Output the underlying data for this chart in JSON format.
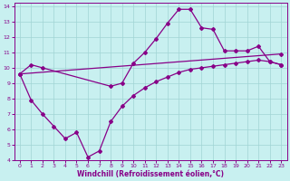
{
  "xlabel": "Windchill (Refroidissement éolien,°C)",
  "background_color": "#c8f0f0",
  "line_color": "#880088",
  "grid_color": "#a0d4d4",
  "xlim": [
    -0.5,
    23.5
  ],
  "ylim": [
    4,
    14.2
  ],
  "xticks": [
    0,
    1,
    2,
    3,
    4,
    5,
    6,
    7,
    8,
    9,
    10,
    11,
    12,
    13,
    14,
    15,
    16,
    17,
    18,
    19,
    20,
    21,
    22,
    23
  ],
  "yticks": [
    4,
    5,
    6,
    7,
    8,
    9,
    10,
    11,
    12,
    13,
    14
  ],
  "upper_line_x": [
    0,
    1,
    2,
    8,
    9,
    10,
    11,
    12,
    13,
    14,
    15,
    16,
    17,
    18,
    19,
    20,
    21,
    22,
    23
  ],
  "upper_line_y": [
    9.6,
    10.2,
    10.0,
    8.8,
    9.0,
    10.3,
    11.0,
    11.9,
    12.9,
    13.8,
    13.8,
    12.6,
    12.5,
    11.1,
    11.1,
    11.1,
    11.4,
    10.4,
    10.2
  ],
  "lower_line_x": [
    0,
    1,
    2,
    3,
    4,
    5,
    6,
    7,
    8,
    9,
    10,
    11,
    12,
    13,
    14,
    15,
    16,
    17,
    18,
    19,
    20,
    21,
    22,
    23
  ],
  "lower_line_y": [
    9.6,
    7.9,
    7.0,
    6.2,
    5.4,
    5.8,
    4.2,
    4.6,
    6.5,
    7.5,
    8.2,
    8.7,
    9.1,
    9.4,
    9.7,
    9.9,
    10.0,
    10.1,
    10.2,
    10.3,
    10.4,
    10.5,
    10.4,
    10.2
  ],
  "middle_line_x": [
    0,
    23
  ],
  "middle_line_y": [
    9.6,
    10.9
  ]
}
